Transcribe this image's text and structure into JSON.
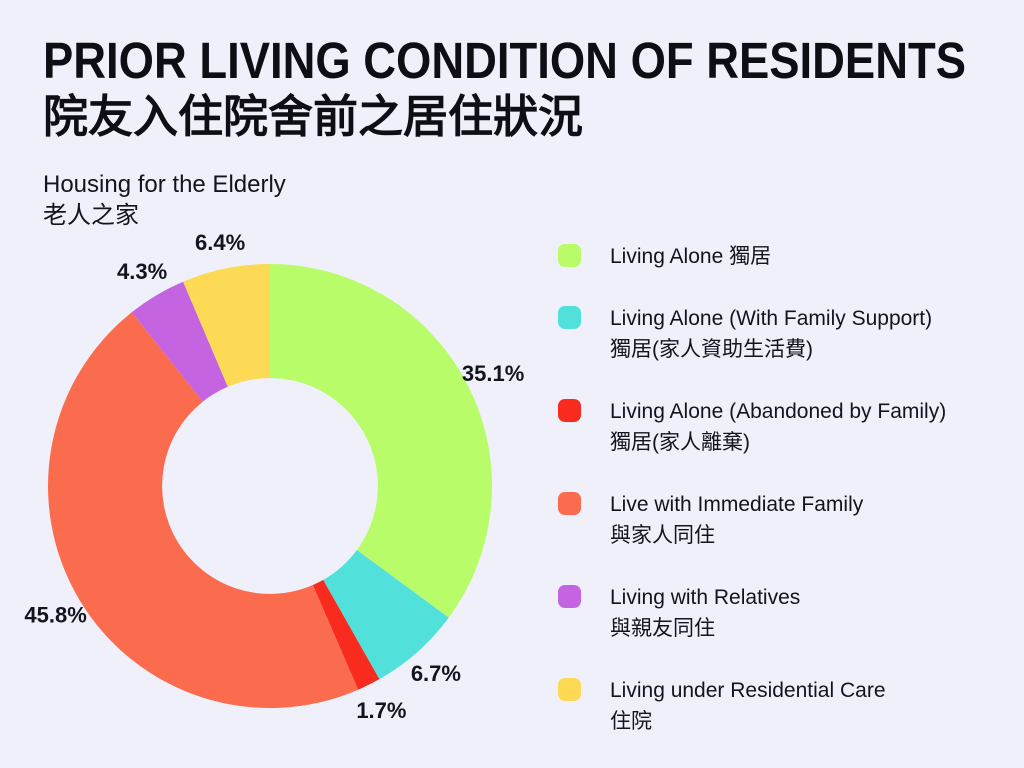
{
  "page": {
    "background_color": "#f0f0fa",
    "text_color": "#14141c"
  },
  "header": {
    "title_en": "PRIOR LIVING CONDITION OF RESIDENTS",
    "title_zh": "院友入住院舍前之居住狀況"
  },
  "subtitle": {
    "label_en": "Housing for the Elderly",
    "label_zh": "老人之家"
  },
  "chart_data": {
    "type": "pie",
    "variant": "donut",
    "title": "Housing for the Elderly 老人之家",
    "start_angle_deg": 0,
    "direction": "clockwise",
    "inner_radius_ratio": 0.486,
    "legend_position": "right",
    "data_labels_shown": true,
    "segments": [
      {
        "label_en": "Living Alone",
        "label_zh": "獨居",
        "value_pct": 35.1,
        "data_label": "35.1%",
        "color": "#b9fc69",
        "legend_inline": true
      },
      {
        "label_en": "Living Alone (With Family Support)",
        "label_zh": "獨居(家人資助生活費)",
        "value_pct": 6.7,
        "data_label": "6.7%",
        "color": "#52e1da",
        "legend_inline": false
      },
      {
        "label_en": "Living Alone (Abandoned by Family)",
        "label_zh": "獨居(家人離棄)",
        "value_pct": 1.7,
        "data_label": "1.7%",
        "color": "#f92a1e",
        "legend_inline": false
      },
      {
        "label_en": "Live with Immediate Family",
        "label_zh": "與家人同住",
        "value_pct": 45.8,
        "data_label": "45.8%",
        "color": "#fb6b4d",
        "legend_inline": false
      },
      {
        "label_en": "Living with Relatives",
        "label_zh": "與親友同住",
        "value_pct": 4.3,
        "data_label": "4.3%",
        "color": "#c564e0",
        "legend_inline": false
      },
      {
        "label_en": "Living under Residential Care",
        "label_zh": "住院",
        "value_pct": 6.4,
        "data_label": "6.4%",
        "color": "#fcda55",
        "legend_inline": false
      }
    ]
  }
}
